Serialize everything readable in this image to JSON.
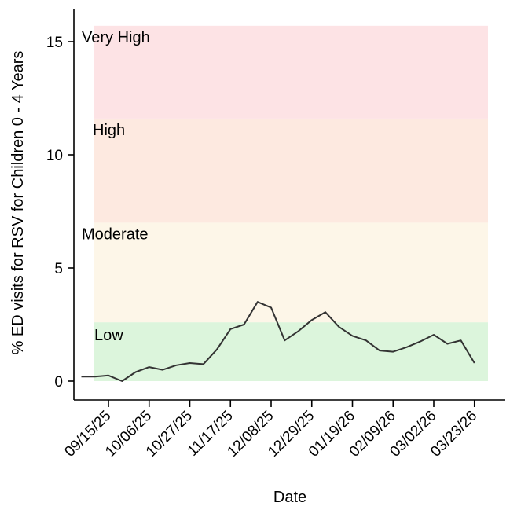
{
  "chart_data": {
    "type": "line",
    "xlabel": "Date",
    "ylabel": "% ED visits for RSV for Children 0 - 4 Years",
    "ylim": [
      0,
      16
    ],
    "y_ticks": [
      0,
      5,
      10,
      15
    ],
    "x_tick_labels": [
      "09/15/25",
      "10/06/25",
      "10/27/25",
      "11/17/25",
      "12/08/25",
      "12/29/25",
      "01/19/26",
      "02/09/26",
      "03/02/26",
      "03/23/26"
    ],
    "bands": [
      {
        "label": "Low",
        "from": 0,
        "to": 2.6,
        "color": "#dcf5dc"
      },
      {
        "label": "Moderate",
        "from": 2.6,
        "to": 7.0,
        "color": "#fdf6e8"
      },
      {
        "label": "High",
        "from": 7.0,
        "to": 11.6,
        "color": "#fde9e0"
      },
      {
        "label": "Very High",
        "from": 11.6,
        "to": 15.7,
        "color": "#fde3e5"
      }
    ],
    "series": [
      {
        "color": "#333333",
        "x": [
          "09/01/25",
          "09/08/25",
          "09/15/25",
          "09/22/25",
          "09/29/25",
          "10/06/25",
          "10/13/25",
          "10/20/25",
          "10/27/25",
          "11/03/25",
          "11/10/25",
          "11/17/25",
          "11/24/25",
          "12/01/25",
          "12/08/25",
          "12/15/25",
          "12/22/25",
          "12/29/25",
          "01/05/26",
          "01/12/26",
          "01/19/26",
          "01/26/26",
          "02/02/26",
          "02/09/26",
          "02/16/26",
          "02/23/26",
          "03/02/26",
          "03/09/26",
          "03/16/26",
          "03/23/26"
        ],
        "values": [
          0.2,
          0.2,
          0.25,
          0.0,
          0.4,
          0.62,
          0.5,
          0.7,
          0.8,
          0.75,
          1.4,
          2.3,
          2.5,
          3.5,
          3.25,
          1.8,
          2.2,
          2.7,
          3.05,
          2.4,
          2.0,
          1.8,
          1.35,
          1.3,
          1.5,
          1.75,
          2.05,
          1.65,
          1.8,
          0.8
        ]
      }
    ]
  }
}
